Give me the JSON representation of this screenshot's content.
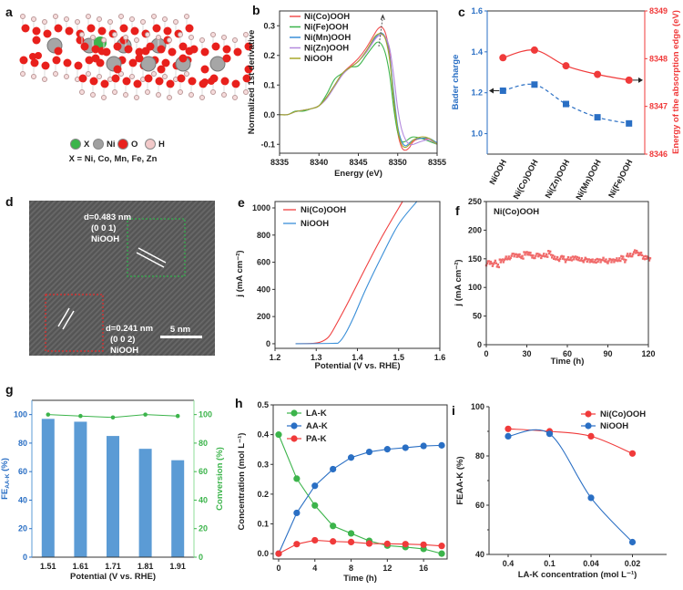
{
  "structure": {
    "panel": "a",
    "legend": [
      {
        "label": "X",
        "color": "#3cb44b"
      },
      {
        "label": "Ni",
        "color": "#a0a0a0"
      },
      {
        "label": "O",
        "color": "#e8201c"
      },
      {
        "label": "H",
        "color": "#f2c9c9"
      }
    ],
    "caption": "X = Ni, Co, Mn, Fe, Zn"
  },
  "tem": {
    "panel": "d",
    "region1": {
      "d": "d=0.483 nm",
      "plane": "(0 0 1)",
      "phase": "NiOOH",
      "box_color": "#2fb34a"
    },
    "region2": {
      "d": "d=0.241 nm",
      "plane": "(0 0 2)",
      "phase": "NiOOH",
      "box_color": "#e82a2a"
    },
    "scale_bar": "5 nm"
  },
  "chart_data": [
    {
      "panel": "b",
      "type": "line",
      "xlabel": "Energy (eV)",
      "ylabel": "Normalized 1st derivative",
      "xlim": [
        8335,
        8355
      ],
      "ylim": [
        -0.13,
        0.35
      ],
      "xticks": [
        "8335",
        "8340",
        "8345",
        "8350",
        "8355"
      ],
      "yticks": [
        "-0.1",
        "0.0",
        "0.1",
        "0.2",
        "0.3"
      ],
      "legend": "top-left",
      "x": [
        8335,
        8336,
        8337,
        8338,
        8339,
        8340,
        8341,
        8342,
        8343,
        8344,
        8345,
        8346,
        8347,
        8347.5,
        8348,
        8348.5,
        8349,
        8349.5,
        8350,
        8350.5,
        8351,
        8351.5,
        8352,
        8353,
        8354,
        8355
      ],
      "series": [
        {
          "name": "Ni(Co)OOH",
          "color": "#f05050",
          "values": [
            0.0,
            0.0,
            0.01,
            0.015,
            0.02,
            0.03,
            0.06,
            0.1,
            0.14,
            0.165,
            0.19,
            0.225,
            0.27,
            0.29,
            0.295,
            0.27,
            0.2,
            0.05,
            -0.06,
            -0.11,
            -0.12,
            -0.11,
            -0.09,
            -0.08,
            -0.085,
            -0.1
          ]
        },
        {
          "name": "Ni(Fe)OOH",
          "color": "#3cb44b",
          "values": [
            0.0,
            0.0,
            0.012,
            0.012,
            0.02,
            0.03,
            0.07,
            0.12,
            0.14,
            0.16,
            0.165,
            0.2,
            0.235,
            0.245,
            0.235,
            0.2,
            0.13,
            0.02,
            -0.06,
            -0.09,
            -0.09,
            -0.08,
            -0.075,
            -0.08,
            -0.09,
            -0.1
          ]
        },
        {
          "name": "Ni(Mn)OOH",
          "color": "#3a8fd8",
          "values": [
            0.0,
            0.0,
            0.01,
            0.015,
            0.02,
            0.03,
            0.06,
            0.1,
            0.14,
            0.16,
            0.18,
            0.215,
            0.255,
            0.27,
            0.275,
            0.255,
            0.19,
            0.07,
            -0.04,
            -0.09,
            -0.105,
            -0.095,
            -0.085,
            -0.08,
            -0.08,
            -0.095
          ]
        },
        {
          "name": "Ni(Zn)OOH",
          "color": "#b389dd",
          "values": [
            0.0,
            0.0,
            0.01,
            0.015,
            0.02,
            0.03,
            0.055,
            0.095,
            0.135,
            0.16,
            0.18,
            0.21,
            0.25,
            0.265,
            0.27,
            0.26,
            0.22,
            0.13,
            0.02,
            -0.05,
            -0.085,
            -0.1,
            -0.1,
            -0.09,
            -0.085,
            -0.1
          ]
        },
        {
          "name": "NiOOH",
          "color": "#a8a82a",
          "values": [
            0.0,
            0.0,
            0.01,
            0.015,
            0.02,
            0.03,
            0.06,
            0.1,
            0.14,
            0.16,
            0.18,
            0.215,
            0.26,
            0.272,
            0.272,
            0.25,
            0.18,
            0.05,
            -0.05,
            -0.1,
            -0.11,
            -0.1,
            -0.085,
            -0.075,
            -0.08,
            -0.1
          ]
        }
      ]
    },
    {
      "panel": "c",
      "type": "line",
      "categories": [
        "NiOOH",
        "Ni(Co)OOH",
        "Ni(Zn)OOH",
        "Ni(Mn)OOH",
        "Ni(Fe)OOH"
      ],
      "ylabel": "Bader charge",
      "ylim": [
        0.9,
        1.6
      ],
      "yticks": [
        "1.0",
        "1.2",
        "1.4",
        "1.6"
      ],
      "ylabel_right": "Energy of the absorption edge (eV)",
      "ylim_right": [
        8346,
        8349
      ],
      "yticks_right": [
        "8346",
        "8347",
        "8348",
        "8349"
      ],
      "series": [
        {
          "axis": "left",
          "color": "#2a6fc4",
          "marker": "square",
          "line": "dashed",
          "values": [
            1.21,
            1.24,
            1.145,
            1.08,
            1.05
          ]
        },
        {
          "axis": "right",
          "color": "#f03a3a",
          "marker": "circle",
          "line": "solid",
          "values": [
            8348.02,
            8348.18,
            8347.85,
            8347.67,
            8347.55
          ]
        }
      ]
    },
    {
      "panel": "e",
      "type": "line",
      "xlabel": "Potential (V vs. RHE)",
      "ylabel": "j (mA cm⁻²)",
      "xlim": [
        1.2,
        1.6
      ],
      "ylim": [
        -34,
        1047
      ],
      "xticks": [
        "1.2",
        "1.3",
        "1.4",
        "1.5",
        "1.6"
      ],
      "yticks": [
        "0",
        "200",
        "400",
        "600",
        "800",
        "1000"
      ],
      "legend": "top-left",
      "series": [
        {
          "name": "Ni(Co)OOH",
          "color": "#f04040",
          "x": [
            1.25,
            1.29,
            1.31,
            1.33,
            1.35,
            1.38,
            1.42,
            1.46,
            1.51
          ],
          "values": [
            0,
            3,
            12,
            50,
            150,
            320,
            560,
            790,
            1050
          ]
        },
        {
          "name": "NiOOH",
          "color": "#3a8fd8",
          "x": [
            1.25,
            1.34,
            1.355,
            1.37,
            1.39,
            1.42,
            1.46,
            1.5,
            1.545
          ],
          "values": [
            0,
            3,
            10,
            70,
            190,
            400,
            650,
            880,
            1050
          ]
        }
      ]
    },
    {
      "panel": "f",
      "type": "scatter",
      "title": "Ni(Co)OOH",
      "xlabel": "Time (h)",
      "ylabel": "j (mA cm⁻²)",
      "xlim": [
        0,
        120
      ],
      "ylim": [
        0,
        250
      ],
      "xticks": [
        "0",
        "30",
        "60",
        "90",
        "120"
      ],
      "yticks": [
        "0",
        "50",
        "100",
        "150",
        "200",
        "250"
      ],
      "color": "#f06a6a",
      "x": [
        0,
        2,
        4,
        6,
        8,
        10,
        12,
        14,
        16,
        18,
        20,
        22,
        24,
        26,
        28,
        30,
        32,
        34,
        36,
        38,
        40,
        42,
        44,
        46,
        48,
        50,
        52,
        54,
        56,
        58,
        60,
        62,
        64,
        66,
        68,
        70,
        72,
        74,
        76,
        78,
        80,
        82,
        84,
        86,
        88,
        90,
        92,
        94,
        96,
        98,
        100,
        102,
        104,
        106,
        108,
        110,
        112,
        114,
        116,
        118,
        120
      ],
      "values": [
        142,
        143,
        141,
        144,
        139,
        145,
        147,
        150,
        152,
        155,
        156,
        157,
        155,
        154,
        158,
        160,
        157,
        154,
        155,
        156,
        155,
        156,
        157,
        160,
        155,
        150,
        151,
        150,
        152,
        148,
        150,
        151,
        150,
        152,
        148,
        149,
        148,
        147,
        148,
        146,
        147,
        146,
        147,
        148,
        147,
        146,
        146,
        148,
        148,
        150,
        151,
        147,
        155,
        157,
        158,
        162,
        160,
        158,
        153,
        151,
        150
      ]
    },
    {
      "panel": "g",
      "type": "bar",
      "categories": [
        "1.51",
        "1.61",
        "1.71",
        "1.81",
        "1.91"
      ],
      "xlabel": "Potential (V vs. RHE)",
      "ylabel": {
        "main": "FE",
        "sub": "AA-K",
        "unit": " (%)"
      },
      "ylim": [
        0,
        110
      ],
      "yticks": [
        "0",
        "20",
        "40",
        "60",
        "80",
        "100"
      ],
      "ylabel_right": "Conversion (%)",
      "ylim_right": [
        0,
        110
      ],
      "yticks_right": [
        "0",
        "20",
        "40",
        "60",
        "80",
        "100"
      ],
      "series": [
        {
          "axis": "left",
          "type": "bar",
          "color": "#5b9bd5",
          "values": [
            97,
            95,
            85,
            76,
            68
          ]
        },
        {
          "axis": "right",
          "type": "line",
          "color": "#3cb44b",
          "values": [
            100,
            99,
            98,
            100,
            99
          ]
        }
      ]
    },
    {
      "panel": "h",
      "type": "line",
      "xlabel": "Time (h)",
      "ylabel": "Concentration (mol L⁻¹)",
      "xlim": [
        -0.6,
        18.6
      ],
      "ylim": [
        -0.018,
        0.5
      ],
      "xticks": [
        "0",
        "4",
        "8",
        "12",
        "16"
      ],
      "yticks": [
        "0.0",
        "0.1",
        "0.2",
        "0.3",
        "0.4",
        "0.5"
      ],
      "legend": "top-left",
      "x": [
        0,
        2,
        4,
        6,
        8,
        10,
        12,
        14,
        16,
        18
      ],
      "series": [
        {
          "name": "LA-K",
          "color": "#3cb44b",
          "values": [
            0.4,
            0.252,
            0.162,
            0.093,
            0.068,
            0.043,
            0.027,
            0.022,
            0.016,
            0.0
          ]
        },
        {
          "name": "AA-K",
          "color": "#2a6fc4",
          "values": [
            0.0,
            0.137,
            0.228,
            0.284,
            0.323,
            0.342,
            0.351,
            0.356,
            0.362,
            0.364
          ]
        },
        {
          "name": "PA-K",
          "color": "#f03a3a",
          "values": [
            0.0,
            0.032,
            0.045,
            0.041,
            0.039,
            0.034,
            0.033,
            0.032,
            0.03,
            0.026
          ]
        }
      ]
    },
    {
      "panel": "i",
      "type": "line",
      "categories": [
        "0.4",
        "0.1",
        "0.04",
        "0.02"
      ],
      "xlabel": "LA-K concentration (mol L⁻¹)",
      "ylabel": "FEAA-K (%)",
      "ylim": [
        40,
        100
      ],
      "yticks": [
        "40",
        "60",
        "80",
        "100"
      ],
      "legend": "top-right",
      "series": [
        {
          "name": "Ni(Co)OOH",
          "color": "#f03a3a",
          "values": [
            91,
            90,
            88,
            81
          ]
        },
        {
          "name": "NiOOH",
          "color": "#2a6fc4",
          "values": [
            88,
            89,
            63,
            45
          ]
        }
      ]
    }
  ]
}
